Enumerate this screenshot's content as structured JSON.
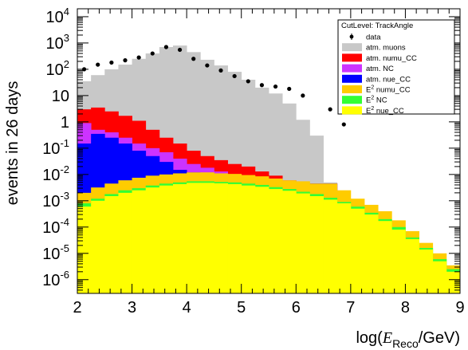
{
  "chart_data": {
    "type": "area",
    "xlabel": "log(E_Reco/GeV)",
    "xlabel_parts": {
      "prefix": "log(",
      "var": "E",
      "sub": "Reco",
      "suffix": "/GeV)"
    },
    "ylabel": "events in 26 days",
    "xlim": [
      2,
      9
    ],
    "ylim": [
      3e-07,
      20000
    ],
    "yscale": "log",
    "x_ticks": [
      {
        "value": 2,
        "label": "2"
      },
      {
        "value": 3,
        "label": "3"
      },
      {
        "value": 4,
        "label": "4"
      },
      {
        "value": 5,
        "label": "5"
      },
      {
        "value": 6,
        "label": "6"
      },
      {
        "value": 7,
        "label": "7"
      },
      {
        "value": 8,
        "label": "8"
      },
      {
        "value": 9,
        "label": "9"
      }
    ],
    "y_ticks": [
      {
        "value": 1e-06,
        "base": "10",
        "exp": "-6"
      },
      {
        "value": 1e-05,
        "base": "10",
        "exp": "-5"
      },
      {
        "value": 0.0001,
        "base": "10",
        "exp": "-4"
      },
      {
        "value": 0.001,
        "base": "10",
        "exp": "-3"
      },
      {
        "value": 0.01,
        "base": "10",
        "exp": "-2"
      },
      {
        "value": 0.1,
        "base": "10",
        "exp": "-1"
      },
      {
        "value": 1,
        "base": "1",
        "exp": ""
      },
      {
        "value": 10,
        "base": "10",
        "exp": ""
      },
      {
        "value": 100,
        "base": "10",
        "exp": "2"
      },
      {
        "value": 1000,
        "base": "10",
        "exp": "3"
      },
      {
        "value": 10000,
        "base": "10",
        "exp": "4"
      }
    ],
    "grid": false,
    "legend": {
      "title": "CutLevel: TrackAngle",
      "position": "top-right",
      "entries": [
        {
          "key": "data",
          "type": "marker",
          "text_parts": [
            "data"
          ],
          "text_sup": ""
        },
        {
          "key": "muons",
          "type": "fill",
          "text_parts": [
            "atm. muons"
          ],
          "text_sup": ""
        },
        {
          "key": "numu",
          "type": "fill",
          "text_parts": [
            "atm. numu_CC"
          ],
          "text_sup": ""
        },
        {
          "key": "nc",
          "type": "fill",
          "text_parts": [
            "atm. NC"
          ],
          "text_sup": ""
        },
        {
          "key": "nue",
          "type": "fill",
          "text_parts": [
            "atm. nue_CC"
          ],
          "text_sup": ""
        },
        {
          "key": "e2numu",
          "type": "fill",
          "text_parts": [
            "E",
            " numu_CC"
          ],
          "text_sup": "2"
        },
        {
          "key": "e2nc",
          "type": "fill",
          "text_parts": [
            "E",
            " NC"
          ],
          "text_sup": "2"
        },
        {
          "key": "e2nue",
          "type": "fill",
          "text_parts": [
            "E",
            " nue_CC"
          ],
          "text_sup": "2"
        }
      ]
    },
    "colors": {
      "muons": "#c8c8c8",
      "numu": "#ff0000",
      "nc": "#cc33ff",
      "nue": "#0000ff",
      "e2numu": "#ffcc00",
      "e2nc": "#33ff33",
      "e2nue": "#ffff00",
      "data": "#000000"
    },
    "bin_edges": [
      2.0,
      2.25,
      2.5,
      2.75,
      3.0,
      3.25,
      3.5,
      3.75,
      4.0,
      4.25,
      4.5,
      4.75,
      5.0,
      5.25,
      5.5,
      5.75,
      6.0,
      6.25,
      6.5,
      6.75,
      7.0,
      7.25,
      7.5,
      7.75,
      8.0,
      8.25,
      8.5,
      8.75,
      9.0
    ],
    "series": [
      {
        "key": "muons",
        "name": "atm. muons",
        "cumulative_top": [
          35,
          60,
          100,
          150,
          250,
          400,
          700,
          800,
          450,
          230,
          140,
          80,
          40,
          20,
          12,
          5,
          1.2,
          0.3,
          0.005,
          null,
          null,
          null,
          null,
          null,
          null,
          null,
          null,
          null
        ]
      },
      {
        "key": "numu",
        "name": "atm. numu_CC",
        "cumulative_top": [
          3,
          3.5,
          2.5,
          1.7,
          1.1,
          0.5,
          0.25,
          0.15,
          0.08,
          0.05,
          0.035,
          0.025,
          0.02,
          0.013,
          0.009,
          0.006,
          0.0045,
          0.0045,
          0.0045,
          null,
          null,
          null,
          null,
          null,
          null,
          null,
          null,
          null
        ]
      },
      {
        "key": "nc",
        "name": "atm. NC",
        "cumulative_top": [
          0.9,
          0.5,
          0.4,
          0.25,
          0.15,
          0.1,
          0.07,
          0.04,
          0.025,
          0.018,
          0.013,
          0.01,
          0.009,
          0.008,
          0.007,
          0.006,
          0.0045,
          0.0045,
          0.0045,
          null,
          null,
          null,
          null,
          null,
          null,
          null,
          null,
          null
        ]
      },
      {
        "key": "nue",
        "name": "atm. nue_CC",
        "cumulative_top": [
          0.15,
          0.35,
          0.25,
          0.15,
          0.08,
          0.05,
          0.03,
          0.015,
          0.012,
          0.011,
          0.01,
          0.009,
          0.008,
          0.007,
          0.006,
          0.0055,
          0.0045,
          0.0045,
          0.0045,
          null,
          null,
          null,
          null,
          null,
          null,
          null,
          null,
          null
        ]
      },
      {
        "key": "e2numu",
        "name": "E² numu_CC",
        "cumulative_top": [
          0.002,
          0.0032,
          0.0045,
          0.006,
          0.0075,
          0.009,
          0.01,
          0.011,
          0.012,
          0.012,
          0.011,
          0.0105,
          0.0095,
          0.0085,
          0.007,
          0.006,
          0.0055,
          0.0045,
          0.0045,
          0.0025,
          0.0012,
          0.0007,
          0.0004,
          0.00018,
          7e-05,
          2.5e-05,
          1e-05,
          3.5e-06
        ]
      },
      {
        "key": "e2nc",
        "name": "E² NC",
        "cumulative_top": [
          0.0008,
          0.0012,
          0.0018,
          0.0025,
          0.003,
          0.0038,
          0.0045,
          0.005,
          0.0055,
          0.0055,
          0.0052,
          0.005,
          0.0045,
          0.004,
          0.0033,
          0.0028,
          0.0022,
          0.0018,
          0.0013,
          0.0009,
          0.0006,
          0.00035,
          0.0002,
          0.0001,
          4e-05,
          1.6e-05,
          6e-06,
          2.5e-06
        ]
      },
      {
        "key": "e2nue",
        "name": "E² nue_CC",
        "cumulative_top": [
          0.0006,
          0.001,
          0.0015,
          0.002,
          0.0025,
          0.0032,
          0.0038,
          0.0043,
          0.0048,
          0.0048,
          0.0046,
          0.0043,
          0.0038,
          0.0034,
          0.0028,
          0.0024,
          0.0019,
          0.0015,
          0.0011,
          0.0008,
          0.0005,
          0.0003,
          0.00017,
          8e-05,
          3.5e-05,
          1.4e-05,
          5e-06,
          2e-06
        ]
      }
    ],
    "data_points": {
      "name": "data",
      "x": [
        2.125,
        2.375,
        2.625,
        2.875,
        3.125,
        3.375,
        3.625,
        3.875,
        4.125,
        4.375,
        4.625,
        4.875,
        5.125,
        5.375,
        5.625,
        5.875,
        6.125,
        6.625,
        6.875
      ],
      "y": [
        100,
        150,
        180,
        220,
        280,
        400,
        700,
        550,
        250,
        140,
        90,
        55,
        35,
        25,
        22,
        18,
        10,
        3,
        0.8
      ]
    }
  }
}
